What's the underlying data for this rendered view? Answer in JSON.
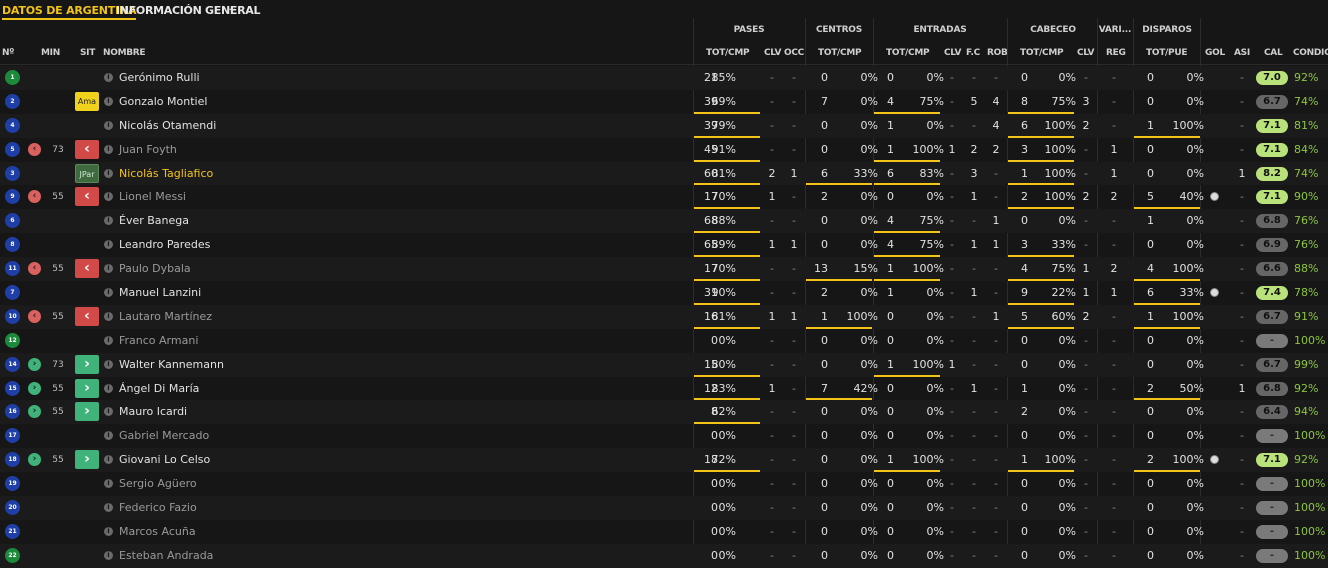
{
  "tabs": {
    "title": "DATOS DE ARGENTINA",
    "view": "INFORMACIÓN GENERAL"
  },
  "groups": [
    "PASES",
    "CENTROS",
    "ENTRADAS",
    "CABECEO",
    "VARI...",
    "DISPAROS"
  ],
  "headers": [
    "Nº",
    "MIN",
    "SIT",
    "NOMBRE",
    "TOT/CMP",
    "CLV",
    "OCC",
    "TOT/CMP",
    "TOT/CMP",
    "CLV",
    "F.C",
    "ROB",
    "TOT/CMP",
    "CLV",
    "REG",
    "TOT/PUE",
    "GOL",
    "ASI",
    "CAL",
    "CONDIC"
  ],
  "players": [
    {
      "num": "1",
      "gk": true,
      "sub": null,
      "min": "",
      "sit": "",
      "name": "Gerónimo Rulli",
      "style": "",
      "pas": [
        "21",
        "85%"
      ],
      "pclv": "-",
      "pocc": "-",
      "cen": [
        "0",
        "0%"
      ],
      "ent": [
        "0",
        "0%"
      ],
      "eclv": "-",
      "efc": "-",
      "erob": "-",
      "cab": [
        "0",
        "0%"
      ],
      "cclv": "-",
      "reg": "-",
      "dis": [
        "0",
        "0%"
      ],
      "gol": "",
      "asi": "-",
      "cal": "7.0",
      "cond": "92%",
      "bars": [],
      "ball": false
    },
    {
      "num": "2",
      "gk": false,
      "sub": null,
      "min": "",
      "sit": "Ama",
      "name": "Gonzalo Montiel",
      "style": "",
      "pas": [
        "39",
        "69%"
      ],
      "pclv": "-",
      "pocc": "-",
      "cen": [
        "7",
        "0%"
      ],
      "ent": [
        "4",
        "75%"
      ],
      "eclv": "-",
      "efc": "5",
      "erob": "4",
      "cab": [
        "8",
        "75%"
      ],
      "cclv": "3",
      "reg": "-",
      "dis": [
        "0",
        "0%"
      ],
      "gol": "",
      "asi": "-",
      "cal": "6.7",
      "cond": "74%",
      "bars": [
        "p",
        "e",
        "h"
      ],
      "ball": false
    },
    {
      "num": "4",
      "gk": false,
      "sub": null,
      "min": "",
      "sit": "",
      "name": "Nicolás Otamendi",
      "style": "",
      "pas": [
        "39",
        "79%"
      ],
      "pclv": "-",
      "pocc": "-",
      "cen": [
        "0",
        "0%"
      ],
      "ent": [
        "1",
        "0%"
      ],
      "eclv": "-",
      "efc": "-",
      "erob": "4",
      "cab": [
        "6",
        "100%"
      ],
      "cclv": "2",
      "reg": "-",
      "dis": [
        "1",
        "100%"
      ],
      "gol": "",
      "asi": "-",
      "cal": "7.1",
      "cond": "81%",
      "bars": [
        "p",
        "h",
        "d"
      ],
      "ball": false
    },
    {
      "num": "5",
      "gk": false,
      "sub": "out",
      "min": "73",
      "sit": "out",
      "name": "Juan Foyth",
      "style": "dim",
      "pas": [
        "45",
        "91%"
      ],
      "pclv": "-",
      "pocc": "-",
      "cen": [
        "0",
        "0%"
      ],
      "ent": [
        "1",
        "100%"
      ],
      "eclv": "1",
      "efc": "2",
      "erob": "2",
      "cab": [
        "3",
        "100%"
      ],
      "cclv": "-",
      "reg": "1",
      "dis": [
        "0",
        "0%"
      ],
      "gol": "",
      "asi": "-",
      "cal": "7.1",
      "cond": "84%",
      "bars": [
        "p",
        "e",
        "h"
      ],
      "ball": false
    },
    {
      "num": "3",
      "gk": false,
      "sub": null,
      "min": "",
      "sit": "JPar",
      "name": "Nicolás Tagliafico",
      "style": "cap",
      "pas": [
        "60",
        "81%"
      ],
      "pclv": "2",
      "pocc": "1",
      "cen": [
        "6",
        "33%"
      ],
      "ent": [
        "6",
        "83%"
      ],
      "eclv": "-",
      "efc": "3",
      "erob": "-",
      "cab": [
        "1",
        "100%"
      ],
      "cclv": "-",
      "reg": "1",
      "dis": [
        "0",
        "0%"
      ],
      "gol": "",
      "asi": "1",
      "cal": "8.2",
      "cond": "74%",
      "bars": [
        "p",
        "c",
        "e",
        "h"
      ],
      "ball": false
    },
    {
      "num": "9",
      "gk": false,
      "sub": "out",
      "min": "55",
      "sit": "out",
      "name": "Lionel Messi",
      "style": "dim",
      "pas": [
        "17",
        "70%"
      ],
      "pclv": "1",
      "pocc": "-",
      "cen": [
        "2",
        "0%"
      ],
      "ent": [
        "0",
        "0%"
      ],
      "eclv": "-",
      "efc": "1",
      "erob": "-",
      "cab": [
        "2",
        "100%"
      ],
      "cclv": "2",
      "reg": "2",
      "dis": [
        "5",
        "40%"
      ],
      "gol": "",
      "asi": "-",
      "cal": "7.1",
      "cond": "90%",
      "bars": [
        "p",
        "h",
        "d"
      ],
      "ball": true
    },
    {
      "num": "6",
      "gk": false,
      "sub": null,
      "min": "",
      "sit": "",
      "name": "Éver Banega",
      "style": "",
      "pas": [
        "68",
        "88%"
      ],
      "pclv": "-",
      "pocc": "-",
      "cen": [
        "0",
        "0%"
      ],
      "ent": [
        "4",
        "75%"
      ],
      "eclv": "-",
      "efc": "-",
      "erob": "1",
      "cab": [
        "0",
        "0%"
      ],
      "cclv": "-",
      "reg": "-",
      "dis": [
        "1",
        "0%"
      ],
      "gol": "",
      "asi": "-",
      "cal": "6.8",
      "cond": "76%",
      "bars": [
        "p",
        "e"
      ],
      "ball": false
    },
    {
      "num": "8",
      "gk": false,
      "sub": null,
      "min": "",
      "sit": "",
      "name": "Leandro Paredes",
      "style": "",
      "pas": [
        "65",
        "89%"
      ],
      "pclv": "1",
      "pocc": "1",
      "cen": [
        "0",
        "0%"
      ],
      "ent": [
        "4",
        "75%"
      ],
      "eclv": "-",
      "efc": "1",
      "erob": "1",
      "cab": [
        "3",
        "33%"
      ],
      "cclv": "-",
      "reg": "-",
      "dis": [
        "0",
        "0%"
      ],
      "gol": "",
      "asi": "-",
      "cal": "6.9",
      "cond": "76%",
      "bars": [
        "p",
        "e",
        "h"
      ],
      "ball": false
    },
    {
      "num": "11",
      "gk": false,
      "sub": "out",
      "min": "55",
      "sit": "out",
      "name": "Paulo Dybala",
      "style": "dim",
      "pas": [
        "17",
        "70%"
      ],
      "pclv": "-",
      "pocc": "-",
      "cen": [
        "13",
        "15%"
      ],
      "ent": [
        "1",
        "100%"
      ],
      "eclv": "-",
      "efc": "-",
      "erob": "-",
      "cab": [
        "4",
        "75%"
      ],
      "cclv": "1",
      "reg": "2",
      "dis": [
        "4",
        "100%"
      ],
      "gol": "",
      "asi": "-",
      "cal": "6.6",
      "cond": "88%",
      "bars": [
        "p",
        "c",
        "e",
        "h",
        "d"
      ],
      "ball": false
    },
    {
      "num": "7",
      "gk": false,
      "sub": null,
      "min": "",
      "sit": "",
      "name": "Manuel Lanzini",
      "style": "",
      "pas": [
        "31",
        "90%"
      ],
      "pclv": "-",
      "pocc": "-",
      "cen": [
        "2",
        "0%"
      ],
      "ent": [
        "1",
        "0%"
      ],
      "eclv": "-",
      "efc": "1",
      "erob": "-",
      "cab": [
        "9",
        "22%"
      ],
      "cclv": "1",
      "reg": "1",
      "dis": [
        "6",
        "33%"
      ],
      "gol": "",
      "asi": "-",
      "cal": "7.4",
      "cond": "78%",
      "bars": [
        "p",
        "h",
        "d"
      ],
      "ball": true
    },
    {
      "num": "10",
      "gk": false,
      "sub": "out",
      "min": "55",
      "sit": "out",
      "name": "Lautaro Martínez",
      "style": "dim",
      "pas": [
        "16",
        "81%"
      ],
      "pclv": "1",
      "pocc": "1",
      "cen": [
        "1",
        "100%"
      ],
      "ent": [
        "0",
        "0%"
      ],
      "eclv": "-",
      "efc": "-",
      "erob": "1",
      "cab": [
        "5",
        "60%"
      ],
      "cclv": "2",
      "reg": "-",
      "dis": [
        "1",
        "100%"
      ],
      "gol": "",
      "asi": "-",
      "cal": "6.7",
      "cond": "91%",
      "bars": [
        "p",
        "c",
        "h",
        "d"
      ],
      "ball": false
    },
    {
      "num": "12",
      "gk": true,
      "sub": null,
      "min": "",
      "sit": "",
      "name": "Franco Armani",
      "style": "dim",
      "pas": [
        "0",
        "0%"
      ],
      "pclv": "-",
      "pocc": "-",
      "cen": [
        "0",
        "0%"
      ],
      "ent": [
        "0",
        "0%"
      ],
      "eclv": "-",
      "efc": "-",
      "erob": "-",
      "cab": [
        "0",
        "0%"
      ],
      "cclv": "-",
      "reg": "-",
      "dis": [
        "0",
        "0%"
      ],
      "gol": "",
      "asi": "-",
      "cal": "-",
      "cond": "100%",
      "bars": [],
      "ball": false
    },
    {
      "num": "14",
      "gk": false,
      "sub": "in",
      "min": "73",
      "sit": "in",
      "name": "Walter Kannemann",
      "style": "",
      "pas": [
        "15",
        "80%"
      ],
      "pclv": "-",
      "pocc": "-",
      "cen": [
        "0",
        "0%"
      ],
      "ent": [
        "1",
        "100%"
      ],
      "eclv": "1",
      "efc": "-",
      "erob": "-",
      "cab": [
        "0",
        "0%"
      ],
      "cclv": "-",
      "reg": "-",
      "dis": [
        "0",
        "0%"
      ],
      "gol": "",
      "asi": "-",
      "cal": "6.7",
      "cond": "99%",
      "bars": [
        "p",
        "e"
      ],
      "ball": false
    },
    {
      "num": "15",
      "gk": false,
      "sub": "in",
      "min": "55",
      "sit": "in",
      "name": "Ángel Di María",
      "style": "",
      "pas": [
        "12",
        "83%"
      ],
      "pclv": "1",
      "pocc": "-",
      "cen": [
        "7",
        "42%"
      ],
      "ent": [
        "0",
        "0%"
      ],
      "eclv": "-",
      "efc": "1",
      "erob": "-",
      "cab": [
        "1",
        "0%"
      ],
      "cclv": "-",
      "reg": "-",
      "dis": [
        "2",
        "50%"
      ],
      "gol": "",
      "asi": "1",
      "cal": "6.8",
      "cond": "92%",
      "bars": [
        "p",
        "c",
        "d"
      ],
      "ball": false
    },
    {
      "num": "16",
      "gk": false,
      "sub": "in",
      "min": "55",
      "sit": "in",
      "name": "Mauro Icardi",
      "style": "",
      "pas": [
        "8",
        "62%"
      ],
      "pclv": "-",
      "pocc": "-",
      "cen": [
        "0",
        "0%"
      ],
      "ent": [
        "0",
        "0%"
      ],
      "eclv": "-",
      "efc": "-",
      "erob": "-",
      "cab": [
        "2",
        "0%"
      ],
      "cclv": "-",
      "reg": "-",
      "dis": [
        "0",
        "0%"
      ],
      "gol": "",
      "asi": "-",
      "cal": "6.4",
      "cond": "94%",
      "bars": [
        "p"
      ],
      "ball": false
    },
    {
      "num": "17",
      "gk": false,
      "sub": null,
      "min": "",
      "sit": "",
      "name": "Gabriel Mercado",
      "style": "dim",
      "pas": [
        "0",
        "0%"
      ],
      "pclv": "-",
      "pocc": "-",
      "cen": [
        "0",
        "0%"
      ],
      "ent": [
        "0",
        "0%"
      ],
      "eclv": "-",
      "efc": "-",
      "erob": "-",
      "cab": [
        "0",
        "0%"
      ],
      "cclv": "-",
      "reg": "-",
      "dis": [
        "0",
        "0%"
      ],
      "gol": "",
      "asi": "-",
      "cal": "-",
      "cond": "100%",
      "bars": [],
      "ball": false
    },
    {
      "num": "18",
      "gk": false,
      "sub": "in",
      "min": "55",
      "sit": "in",
      "name": "Giovani Lo Celso",
      "style": "",
      "pas": [
        "18",
        "72%"
      ],
      "pclv": "-",
      "pocc": "-",
      "cen": [
        "0",
        "0%"
      ],
      "ent": [
        "1",
        "100%"
      ],
      "eclv": "-",
      "efc": "-",
      "erob": "-",
      "cab": [
        "1",
        "100%"
      ],
      "cclv": "-",
      "reg": "-",
      "dis": [
        "2",
        "100%"
      ],
      "gol": "",
      "asi": "-",
      "cal": "7.1",
      "cond": "92%",
      "bars": [
        "p",
        "e",
        "h",
        "d"
      ],
      "ball": true
    },
    {
      "num": "19",
      "gk": false,
      "sub": null,
      "min": "",
      "sit": "",
      "name": "Sergio Agüero",
      "style": "dim",
      "pas": [
        "0",
        "0%"
      ],
      "pclv": "-",
      "pocc": "-",
      "cen": [
        "0",
        "0%"
      ],
      "ent": [
        "0",
        "0%"
      ],
      "eclv": "-",
      "efc": "-",
      "erob": "-",
      "cab": [
        "0",
        "0%"
      ],
      "cclv": "-",
      "reg": "-",
      "dis": [
        "0",
        "0%"
      ],
      "gol": "",
      "asi": "-",
      "cal": "-",
      "cond": "100%",
      "bars": [],
      "ball": false
    },
    {
      "num": "20",
      "gk": false,
      "sub": null,
      "min": "",
      "sit": "",
      "name": "Federico Fazio",
      "style": "dim",
      "pas": [
        "0",
        "0%"
      ],
      "pclv": "-",
      "pocc": "-",
      "cen": [
        "0",
        "0%"
      ],
      "ent": [
        "0",
        "0%"
      ],
      "eclv": "-",
      "efc": "-",
      "erob": "-",
      "cab": [
        "0",
        "0%"
      ],
      "cclv": "-",
      "reg": "-",
      "dis": [
        "0",
        "0%"
      ],
      "gol": "",
      "asi": "-",
      "cal": "-",
      "cond": "100%",
      "bars": [],
      "ball": false
    },
    {
      "num": "21",
      "gk": false,
      "sub": null,
      "min": "",
      "sit": "",
      "name": "Marcos Acuña",
      "style": "dim",
      "pas": [
        "0",
        "0%"
      ],
      "pclv": "-",
      "pocc": "-",
      "cen": [
        "0",
        "0%"
      ],
      "ent": [
        "0",
        "0%"
      ],
      "eclv": "-",
      "efc": "-",
      "erob": "-",
      "cab": [
        "0",
        "0%"
      ],
      "cclv": "-",
      "reg": "-",
      "dis": [
        "0",
        "0%"
      ],
      "gol": "",
      "asi": "-",
      "cal": "-",
      "cond": "100%",
      "bars": [],
      "ball": false
    },
    {
      "num": "22",
      "gk": true,
      "sub": null,
      "min": "",
      "sit": "",
      "name": "Esteban Andrada",
      "style": "dim",
      "pas": [
        "0",
        "0%"
      ],
      "pclv": "-",
      "pocc": "-",
      "cen": [
        "0",
        "0%"
      ],
      "ent": [
        "0",
        "0%"
      ],
      "eclv": "-",
      "efc": "-",
      "erob": "-",
      "cab": [
        "0",
        "0%"
      ],
      "cclv": "-",
      "reg": "-",
      "dis": [
        "0",
        "0%"
      ],
      "gol": "",
      "asi": "-",
      "cal": "-",
      "cond": "100%",
      "bars": [],
      "ball": false
    }
  ],
  "colors": {
    "accent": "#f2c418",
    "good": "#8cc63f",
    "subOut": "#d24a48",
    "subIn": "#3fb37a"
  }
}
